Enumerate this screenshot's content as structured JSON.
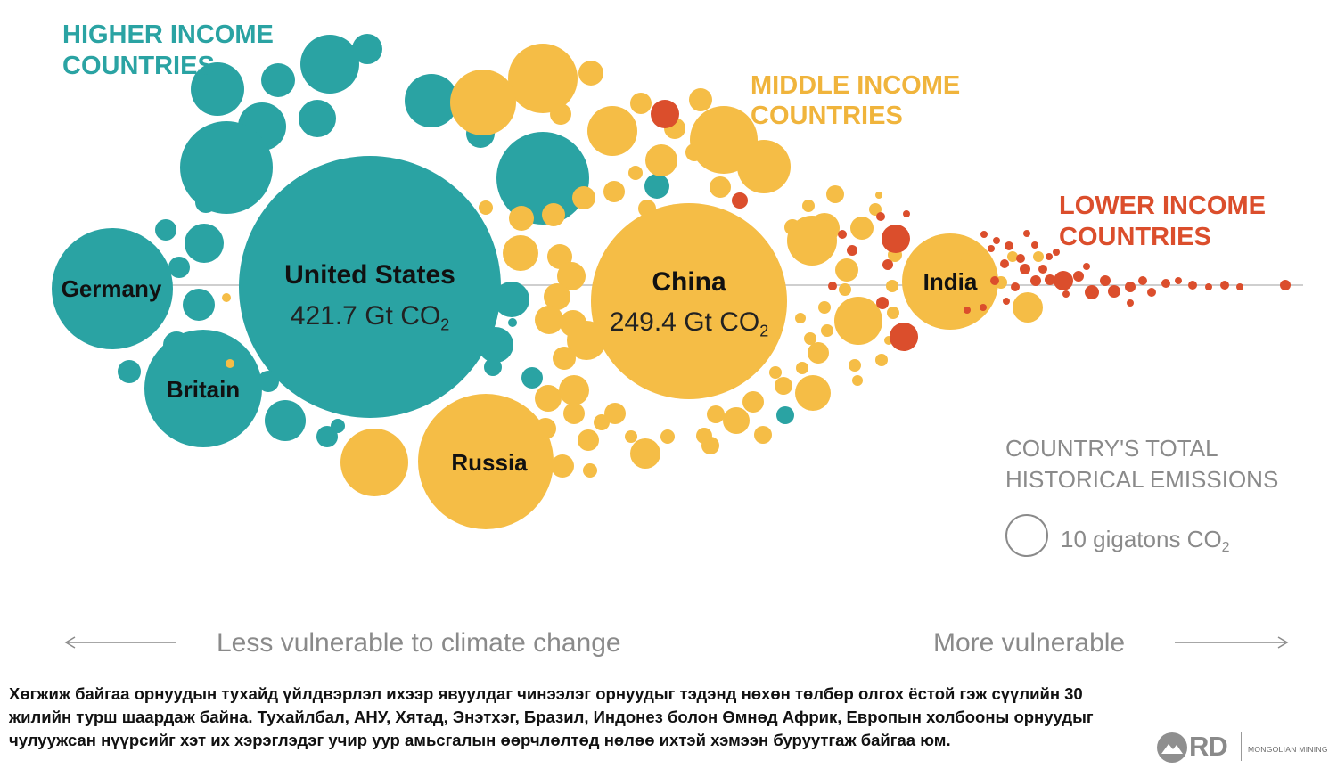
{
  "chart_data": {
    "type": "bubble",
    "groups": [
      {
        "label_lines": [
          "HIGHER INCOME",
          "COUNTRIES"
        ],
        "color": "#2aa3a3"
      },
      {
        "label_lines": [
          "MIDDLE INCOME",
          "COUNTRIES"
        ],
        "color": "#f5bd46"
      },
      {
        "label_lines": [
          "LOWER INCOME",
          "COUNTRIES"
        ],
        "color": "#db4e2c"
      }
    ],
    "labeled_countries": [
      {
        "name": "United States",
        "value": 421.7,
        "value_label": "421.7 Gt CO",
        "unit_sub": "2",
        "group": 0
      },
      {
        "name": "China",
        "value": 249.4,
        "value_label": "249.4 Gt CO",
        "unit_sub": "2",
        "group": 1
      },
      {
        "name": "Russia",
        "group": 1
      },
      {
        "name": "Germany",
        "group": 0
      },
      {
        "name": "Britain",
        "group": 0
      },
      {
        "name": "India",
        "group": 1
      }
    ],
    "legend": {
      "title_lines": [
        "COUNTRY'S TOTAL",
        "HISTORICAL EMISSIONS"
      ],
      "scale_label": "10 gigatons CO",
      "scale_sub": "2",
      "scale_value": 10
    },
    "x_axis": {
      "left_label": "Less vulnerable to climate change",
      "right_label": "More vulnerable"
    }
  },
  "caption": {
    "lines": [
      "Хөгжиж байгаа орнуудын тухайд үйлдвэрлэл ихээр явуулдаг чинээлэг орнуудыг тэдэнд нөхөн төлбөр олгох ёстой гэж сүүлийн 30",
      "жилийн турш шаардаж байна. Тухайлбал, АНУ, Хятад, Энэтхэг, Бразил, Индонез болон Өмнөд Африк, Европын холбооны орнуудыг",
      "чулуужсан нүүрсийг хэт их хэрэглэдэг учир уур амьсгалын өөрчлөлтөд нөлөө ихтэй хэмээн буруутгаж байгаа юм."
    ]
  },
  "logo": {
    "brand": "RD",
    "name": "MONGOLIAN MINING"
  }
}
